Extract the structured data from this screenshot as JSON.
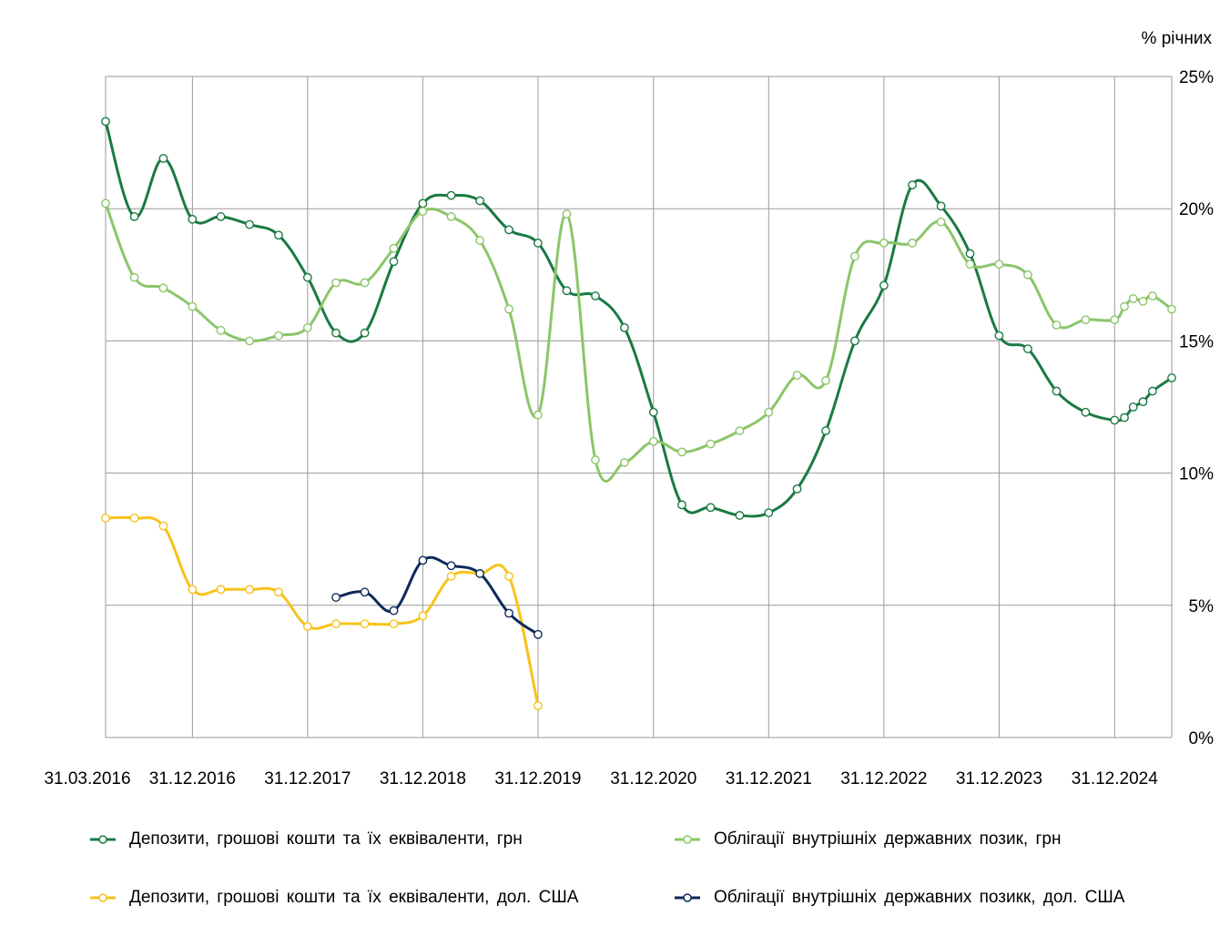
{
  "chart_data": {
    "type": "line",
    "unit_label": "% річних",
    "x_tick_labels": [
      "31.03.2016",
      "31.12.2016",
      "31.12.2017",
      "31.12.2018",
      "31.12.2019",
      "31.12.2020",
      "31.12.2021",
      "31.12.2022",
      "31.12.2023",
      "31.12.2024"
    ],
    "y_tick_labels": [
      "0%",
      "5%",
      "10%",
      "15%",
      "20%",
      "25%"
    ],
    "y_ticks": [
      0,
      5,
      10,
      15,
      20,
      25
    ],
    "ylim": [
      0,
      25
    ],
    "xlim": [
      "2016-03-31",
      "2025-06-30"
    ],
    "grid": true,
    "legend_position": "bottom",
    "series": [
      {
        "name": "Депозити, грошові кошти та їх еквіваленти, грн",
        "color": "#1a7a43",
        "points": [
          [
            "2016-03-31",
            23.3
          ],
          [
            "2016-06-30",
            19.7
          ],
          [
            "2016-09-30",
            21.9
          ],
          [
            "2016-12-31",
            19.6
          ],
          [
            "2017-03-31",
            19.7
          ],
          [
            "2017-06-30",
            19.4
          ],
          [
            "2017-09-30",
            19.0
          ],
          [
            "2017-12-31",
            17.4
          ],
          [
            "2018-03-31",
            15.3
          ],
          [
            "2018-06-30",
            15.3
          ],
          [
            "2018-09-30",
            18.0
          ],
          [
            "2018-12-31",
            20.2
          ],
          [
            "2019-03-31",
            20.5
          ],
          [
            "2019-06-30",
            20.3
          ],
          [
            "2019-09-30",
            19.2
          ],
          [
            "2019-12-31",
            18.7
          ],
          [
            "2020-03-31",
            16.9
          ],
          [
            "2020-06-30",
            16.7
          ],
          [
            "2020-09-30",
            15.5
          ],
          [
            "2020-12-31",
            12.3
          ],
          [
            "2021-03-31",
            8.8
          ],
          [
            "2021-06-30",
            8.7
          ],
          [
            "2021-09-30",
            8.4
          ],
          [
            "2021-12-31",
            8.5
          ],
          [
            "2022-03-31",
            9.4
          ],
          [
            "2022-06-30",
            11.6
          ],
          [
            "2022-09-30",
            15.0
          ],
          [
            "2022-12-31",
            17.1
          ],
          [
            "2023-03-31",
            20.9
          ],
          [
            "2023-06-30",
            20.1
          ],
          [
            "2023-09-30",
            18.3
          ],
          [
            "2023-12-31",
            15.2
          ],
          [
            "2024-03-31",
            14.7
          ],
          [
            "2024-06-30",
            13.1
          ],
          [
            "2024-09-30",
            12.3
          ],
          [
            "2024-12-31",
            12.0
          ],
          [
            "2025-01-31",
            12.1
          ],
          [
            "2025-02-28",
            12.5
          ],
          [
            "2025-03-31",
            12.7
          ],
          [
            "2025-04-30",
            13.1
          ],
          [
            "2025-06-30",
            13.6
          ]
        ]
      },
      {
        "name": "Облігації внутрішніх державних позик, грн",
        "color": "#8cc56a",
        "points": [
          [
            "2016-03-31",
            20.2
          ],
          [
            "2016-06-30",
            17.4
          ],
          [
            "2016-09-30",
            17.0
          ],
          [
            "2016-12-31",
            16.3
          ],
          [
            "2017-03-31",
            15.4
          ],
          [
            "2017-06-30",
            15.0
          ],
          [
            "2017-09-30",
            15.2
          ],
          [
            "2017-12-31",
            15.5
          ],
          [
            "2018-03-31",
            17.2
          ],
          [
            "2018-06-30",
            17.2
          ],
          [
            "2018-09-30",
            18.5
          ],
          [
            "2018-12-31",
            19.9
          ],
          [
            "2019-03-31",
            19.7
          ],
          [
            "2019-06-30",
            18.8
          ],
          [
            "2019-09-30",
            16.2
          ],
          [
            "2019-12-31",
            12.2
          ],
          [
            "2020-03-31",
            19.8
          ],
          [
            "2020-06-30",
            10.5
          ],
          [
            "2020-09-30",
            10.4
          ],
          [
            "2020-12-31",
            11.2
          ],
          [
            "2021-03-31",
            10.8
          ],
          [
            "2021-06-30",
            11.1
          ],
          [
            "2021-09-30",
            11.6
          ],
          [
            "2021-12-31",
            12.3
          ],
          [
            "2022-03-31",
            13.7
          ],
          [
            "2022-06-30",
            13.5
          ],
          [
            "2022-09-30",
            18.2
          ],
          [
            "2022-12-31",
            18.7
          ],
          [
            "2023-03-31",
            18.7
          ],
          [
            "2023-06-30",
            19.5
          ],
          [
            "2023-09-30",
            17.9
          ],
          [
            "2023-12-31",
            17.9
          ],
          [
            "2024-03-31",
            17.5
          ],
          [
            "2024-06-30",
            15.6
          ],
          [
            "2024-09-30",
            15.8
          ],
          [
            "2024-12-31",
            15.8
          ],
          [
            "2025-01-31",
            16.3
          ],
          [
            "2025-02-28",
            16.6
          ],
          [
            "2025-03-31",
            16.5
          ],
          [
            "2025-04-30",
            16.7
          ],
          [
            "2025-06-30",
            16.2
          ]
        ]
      },
      {
        "name": "Депозити, грошові кошти та їх еквіваленти, дол. США",
        "color": "#f7c21b",
        "points": [
          [
            "2016-03-31",
            8.3
          ],
          [
            "2016-06-30",
            8.3
          ],
          [
            "2016-09-30",
            8.0
          ],
          [
            "2016-12-31",
            5.6
          ],
          [
            "2017-03-31",
            5.6
          ],
          [
            "2017-06-30",
            5.6
          ],
          [
            "2017-09-30",
            5.5
          ],
          [
            "2017-12-31",
            4.2
          ],
          [
            "2018-03-31",
            4.3
          ],
          [
            "2018-06-30",
            4.3
          ],
          [
            "2018-09-30",
            4.3
          ],
          [
            "2018-12-31",
            4.6
          ],
          [
            "2019-03-31",
            6.1
          ],
          [
            "2019-06-30",
            6.2
          ],
          [
            "2019-09-30",
            6.1
          ],
          [
            "2019-12-31",
            1.2
          ]
        ]
      },
      {
        "name": "Облігації внутрішніх державних позикк, дол. США",
        "color": "#0e2a5a",
        "points": [
          [
            "2018-03-31",
            5.3
          ],
          [
            "2018-06-30",
            5.5
          ],
          [
            "2018-09-30",
            4.8
          ],
          [
            "2018-12-31",
            6.7
          ],
          [
            "2019-03-31",
            6.5
          ],
          [
            "2019-06-30",
            6.2
          ],
          [
            "2019-09-30",
            4.7
          ],
          [
            "2019-12-31",
            3.9
          ]
        ]
      }
    ]
  }
}
